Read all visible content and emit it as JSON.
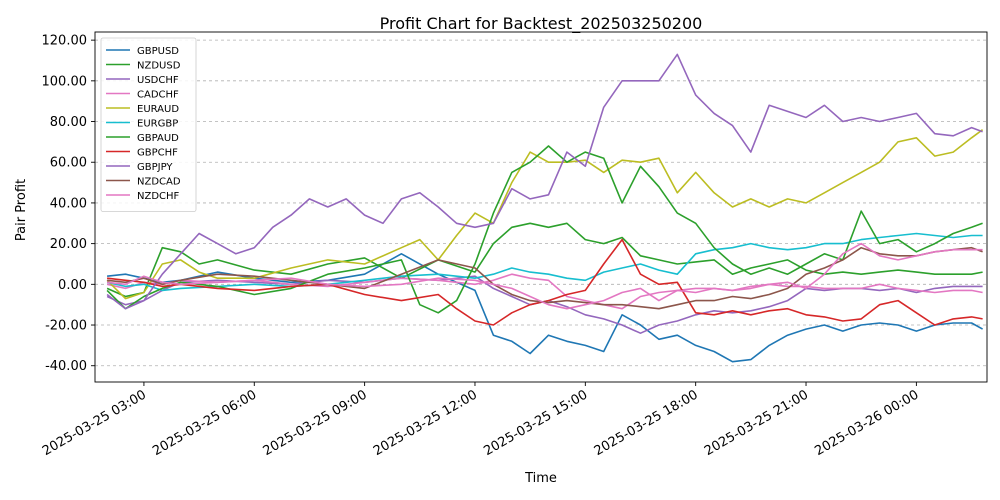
{
  "chart_data": {
    "type": "line",
    "title": "Profit Chart for Backtest_202503250200",
    "xlabel": "Time",
    "ylabel": "Pair Profit",
    "ylim": [
      -48,
      124
    ],
    "xlim": [
      1.67,
      25.92
    ],
    "x_unit": "hours since 2025-03-25 00:00",
    "yticks": [
      -40,
      -20,
      0,
      20,
      40,
      60,
      80,
      100,
      120
    ],
    "ytick_labels": [
      "-40.00",
      "-20.00",
      "0.00",
      "20.00",
      "40.00",
      "60.00",
      "80.00",
      "100.00",
      "120.00"
    ],
    "xticks": [
      3,
      6,
      9,
      12,
      15,
      18,
      21,
      24
    ],
    "xtick_labels": [
      "2025-03-25 03:00",
      "2025-03-25 06:00",
      "2025-03-25 09:00",
      "2025-03-25 12:00",
      "2025-03-25 15:00",
      "2025-03-25 18:00",
      "2025-03-25 21:00",
      "2025-03-26 00:00"
    ],
    "grid": "horizontal dashed",
    "legend_position": "top-left",
    "series": [
      {
        "name": "GBPUSD",
        "color": "#1f77b4",
        "x": [
          2,
          2.5,
          3,
          3.5,
          4,
          5,
          6,
          7,
          8,
          9,
          10,
          11,
          12,
          12.5,
          13,
          13.5,
          14,
          14.5,
          15,
          15.5,
          16,
          16.5,
          17,
          17.5,
          18,
          18.5,
          19,
          19.5,
          20,
          20.5,
          21,
          21.5,
          22,
          22.5,
          23,
          23.5,
          24,
          24.5,
          25,
          25.5,
          25.8
        ],
        "y": [
          4,
          5,
          3,
          1,
          2,
          6,
          3,
          1,
          2,
          5,
          15,
          5,
          -3,
          -25,
          -28,
          -34,
          -25,
          -28,
          -30,
          -33,
          -15,
          -20,
          -27,
          -25,
          -30,
          -33,
          -38,
          -37,
          -30,
          -25,
          -22,
          -20,
          -23,
          -20,
          -19,
          -20,
          -23,
          -20,
          -19,
          -19,
          -22
        ]
      },
      {
        "name": "NZDUSD",
        "color": "#2ca02c",
        "x": [
          2,
          2.5,
          3,
          3.5,
          4,
          4.5,
          5,
          6,
          7,
          8,
          9,
          10,
          11,
          12,
          12.5,
          13,
          13.5,
          14,
          14.5,
          15,
          15.5,
          16,
          16.5,
          17,
          17.5,
          18,
          18.5,
          19,
          19.5,
          20,
          20.5,
          21,
          21.5,
          22,
          22.5,
          23,
          23.5,
          24,
          24.5,
          25,
          25.5,
          25.8
        ],
        "y": [
          -2,
          -6,
          -4,
          18,
          16,
          10,
          12,
          7,
          5,
          10,
          13,
          3,
          12,
          6,
          20,
          28,
          30,
          28,
          30,
          22,
          20,
          23,
          14,
          12,
          10,
          11,
          12,
          5,
          8,
          10,
          12,
          7,
          5,
          6,
          5,
          6,
          7,
          6,
          5,
          5,
          5,
          6
        ]
      },
      {
        "name": "USDCHF",
        "color": "#9467bd",
        "x": [
          2,
          2.5,
          3,
          3.5,
          4,
          5,
          6,
          7,
          8,
          9,
          10,
          11,
          12,
          12.5,
          13,
          13.5,
          14,
          14.5,
          15,
          15.5,
          16,
          16.5,
          17,
          17.5,
          18,
          18.5,
          19,
          19.5,
          20,
          20.5,
          21,
          21.5,
          22,
          22.5,
          23,
          23.5,
          24,
          24.5,
          25,
          25.5,
          25.8
        ],
        "y": [
          -6,
          -10,
          -8,
          -3,
          1,
          2,
          1,
          0,
          2,
          1,
          3,
          2,
          4,
          -2,
          -6,
          -10,
          -8,
          -11,
          -15,
          -17,
          -20,
          -24,
          -20,
          -18,
          -15,
          -13,
          -14,
          -13,
          -11,
          -8,
          -2,
          -3,
          -2,
          -2,
          -3,
          -2,
          -4,
          -2,
          -1,
          -1,
          -1
        ]
      },
      {
        "name": "CADCHF",
        "color": "#e377c2",
        "x": [
          2,
          2.5,
          3,
          3.5,
          4,
          5,
          6,
          7,
          8,
          9,
          10,
          11,
          12,
          12.5,
          13,
          13.5,
          14,
          14.5,
          15,
          15.5,
          16,
          16.5,
          17,
          17.5,
          18,
          18.5,
          19,
          19.5,
          20,
          20.5,
          21,
          21.5,
          22,
          22.5,
          23,
          23.5,
          24,
          24.5,
          25,
          25.5,
          25.8
        ],
        "y": [
          0,
          -2,
          1,
          0,
          2,
          1,
          2,
          0,
          -1,
          1,
          3,
          2,
          0,
          2,
          5,
          3,
          2,
          -6,
          -8,
          -10,
          -12,
          -6,
          -4,
          -3,
          -2,
          -2,
          -3,
          -1,
          0,
          -1,
          -1,
          -2,
          -2,
          -2,
          0,
          -2,
          -3,
          -4,
          -3,
          -3,
          -4
        ]
      },
      {
        "name": "EURAUD",
        "color": "#bcbd22",
        "x": [
          2,
          2.5,
          3,
          3.5,
          4,
          4.5,
          5,
          6,
          7,
          8,
          9,
          10,
          10.5,
          11,
          11.5,
          12,
          12.5,
          13,
          13.5,
          14,
          14.5,
          15,
          15.5,
          16,
          16.5,
          17,
          17.5,
          18,
          18.5,
          19,
          19.5,
          20,
          20.5,
          21,
          21.5,
          22,
          22.5,
          23,
          23.5,
          24,
          24.5,
          25,
          25.5,
          25.8
        ],
        "y": [
          2,
          -7,
          -4,
          10,
          12,
          6,
          3,
          3,
          8,
          12,
          10,
          18,
          22,
          12,
          24,
          35,
          30,
          50,
          65,
          60,
          60,
          61,
          55,
          61,
          60,
          62,
          45,
          55,
          45,
          38,
          42,
          38,
          42,
          40,
          45,
          50,
          55,
          60,
          70,
          72,
          63,
          65,
          72,
          76
        ]
      },
      {
        "name": "EURGBP",
        "color": "#17becf",
        "x": [
          2,
          2.5,
          3,
          3.5,
          4,
          5,
          6,
          7,
          8,
          9,
          10,
          11,
          12,
          12.5,
          13,
          13.5,
          14,
          14.5,
          15,
          15.5,
          16,
          16.5,
          17,
          17.5,
          18,
          18.5,
          19,
          19.5,
          20,
          20.5,
          21,
          21.5,
          22,
          22.5,
          23,
          23.5,
          24,
          24.5,
          25,
          25.5,
          25.8
        ],
        "y": [
          1,
          -1,
          0,
          -3,
          -2,
          -1,
          0,
          -1,
          0,
          2,
          4,
          5,
          3,
          5,
          8,
          6,
          5,
          3,
          2,
          6,
          8,
          10,
          7,
          5,
          15,
          17,
          18,
          20,
          18,
          17,
          18,
          20,
          20,
          22,
          23,
          24,
          25,
          24,
          23,
          24,
          24
        ]
      },
      {
        "name": "GBPAUD",
        "color": "#2ca02c",
        "x": [
          2,
          2.5,
          3,
          3.5,
          4,
          5,
          6,
          7,
          8,
          9,
          10,
          10.5,
          11,
          11.5,
          12,
          12.5,
          13,
          13.5,
          14,
          14.5,
          15,
          15.5,
          16,
          16.5,
          17,
          17.5,
          18,
          18.5,
          19,
          19.5,
          20,
          20.5,
          21,
          21.5,
          22,
          22.5,
          23,
          23.5,
          24,
          24.5,
          25,
          25.5,
          25.8
        ],
        "y": [
          -3,
          -12,
          -6,
          -2,
          1,
          -1,
          -5,
          -2,
          5,
          8,
          12,
          -10,
          -14,
          -8,
          10,
          35,
          55,
          60,
          68,
          60,
          65,
          62,
          40,
          58,
          48,
          35,
          30,
          18,
          10,
          5,
          8,
          5,
          10,
          15,
          12,
          36,
          20,
          22,
          16,
          20,
          25,
          28,
          30
        ]
      },
      {
        "name": "GBPCHF",
        "color": "#d62728",
        "x": [
          2,
          2.5,
          3,
          3.5,
          4,
          5,
          6,
          7,
          8,
          9,
          10,
          11,
          11.5,
          12,
          12.5,
          13,
          13.5,
          14,
          14.5,
          15,
          15.5,
          16,
          16.5,
          17,
          17.5,
          18,
          18.5,
          19,
          19.5,
          20,
          20.5,
          21,
          21.5,
          22,
          22.5,
          23,
          23.5,
          24,
          24.5,
          25,
          25.5,
          25.8
        ],
        "y": [
          3,
          2,
          1,
          -1,
          0,
          -2,
          -3,
          -1,
          0,
          -5,
          -8,
          -5,
          -12,
          -18,
          -20,
          -14,
          -10,
          -8,
          -5,
          -3,
          10,
          22,
          5,
          0,
          1,
          -14,
          -15,
          -13,
          -15,
          -13,
          -12,
          -15,
          -16,
          -18,
          -17,
          -10,
          -8,
          -14,
          -20,
          -17,
          -16,
          -17
        ]
      },
      {
        "name": "GBPJPY",
        "color": "#9467bd",
        "x": [
          2,
          2.5,
          3,
          3.5,
          4,
          4.5,
          5,
          5.5,
          6,
          6.5,
          7,
          7.5,
          8,
          8.5,
          9,
          9.5,
          10,
          10.5,
          11,
          11.5,
          12,
          12.5,
          13,
          13.5,
          14,
          14.5,
          15,
          15.5,
          16,
          16.5,
          17,
          17.5,
          18,
          18.5,
          19,
          19.5,
          20,
          20.5,
          21,
          21.5,
          22,
          22.5,
          23,
          23.5,
          24,
          24.5,
          25,
          25.5,
          25.8
        ],
        "y": [
          -5,
          -12,
          -8,
          5,
          15,
          25,
          20,
          15,
          18,
          28,
          34,
          42,
          38,
          42,
          34,
          30,
          42,
          45,
          38,
          30,
          28,
          30,
          47,
          42,
          44,
          65,
          58,
          87,
          100,
          100,
          100,
          113,
          93,
          84,
          78,
          65,
          88,
          85,
          82,
          88,
          80,
          82,
          80,
          82,
          84,
          74,
          73,
          77,
          75
        ]
      },
      {
        "name": "NZDCAD",
        "color": "#8c564b",
        "x": [
          2,
          2.5,
          3,
          3.5,
          4,
          5,
          6,
          7,
          8,
          9,
          10,
          11,
          12,
          12.5,
          13,
          13.5,
          14,
          14.5,
          15,
          15.5,
          16,
          16.5,
          17,
          17.5,
          18,
          18.5,
          19,
          19.5,
          20,
          20.5,
          21,
          21.5,
          22,
          22.5,
          23,
          23.5,
          24,
          24.5,
          25,
          25.5,
          25.8
        ],
        "y": [
          2,
          1,
          3,
          0,
          2,
          5,
          4,
          2,
          0,
          -2,
          5,
          12,
          8,
          0,
          -5,
          -8,
          -9,
          -8,
          -9,
          -10,
          -10,
          -11,
          -12,
          -10,
          -8,
          -8,
          -6,
          -7,
          -5,
          -2,
          5,
          8,
          12,
          18,
          15,
          14,
          14,
          16,
          17,
          18,
          16
        ]
      },
      {
        "name": "NZDCHF",
        "color": "#e377c2",
        "x": [
          2,
          2.5,
          3,
          3.5,
          4,
          5,
          6,
          7,
          8,
          9,
          10,
          11,
          12,
          12.5,
          13,
          13.5,
          14,
          14.5,
          15,
          15.5,
          16,
          16.5,
          17,
          17.5,
          18,
          18.5,
          19,
          19.5,
          20,
          20.5,
          21,
          21.5,
          22,
          22.5,
          23,
          23.5,
          24,
          24.5,
          25,
          25.5,
          25.8
        ],
        "y": [
          1,
          0,
          4,
          1,
          0,
          1,
          2,
          3,
          0,
          -1,
          0,
          3,
          2,
          0,
          -2,
          -6,
          -10,
          -12,
          -10,
          -8,
          -4,
          -2,
          -8,
          -3,
          -4,
          -2,
          -3,
          -2,
          0,
          1,
          -2,
          5,
          15,
          20,
          14,
          12,
          14,
          16,
          17,
          17,
          17
        ]
      }
    ]
  }
}
